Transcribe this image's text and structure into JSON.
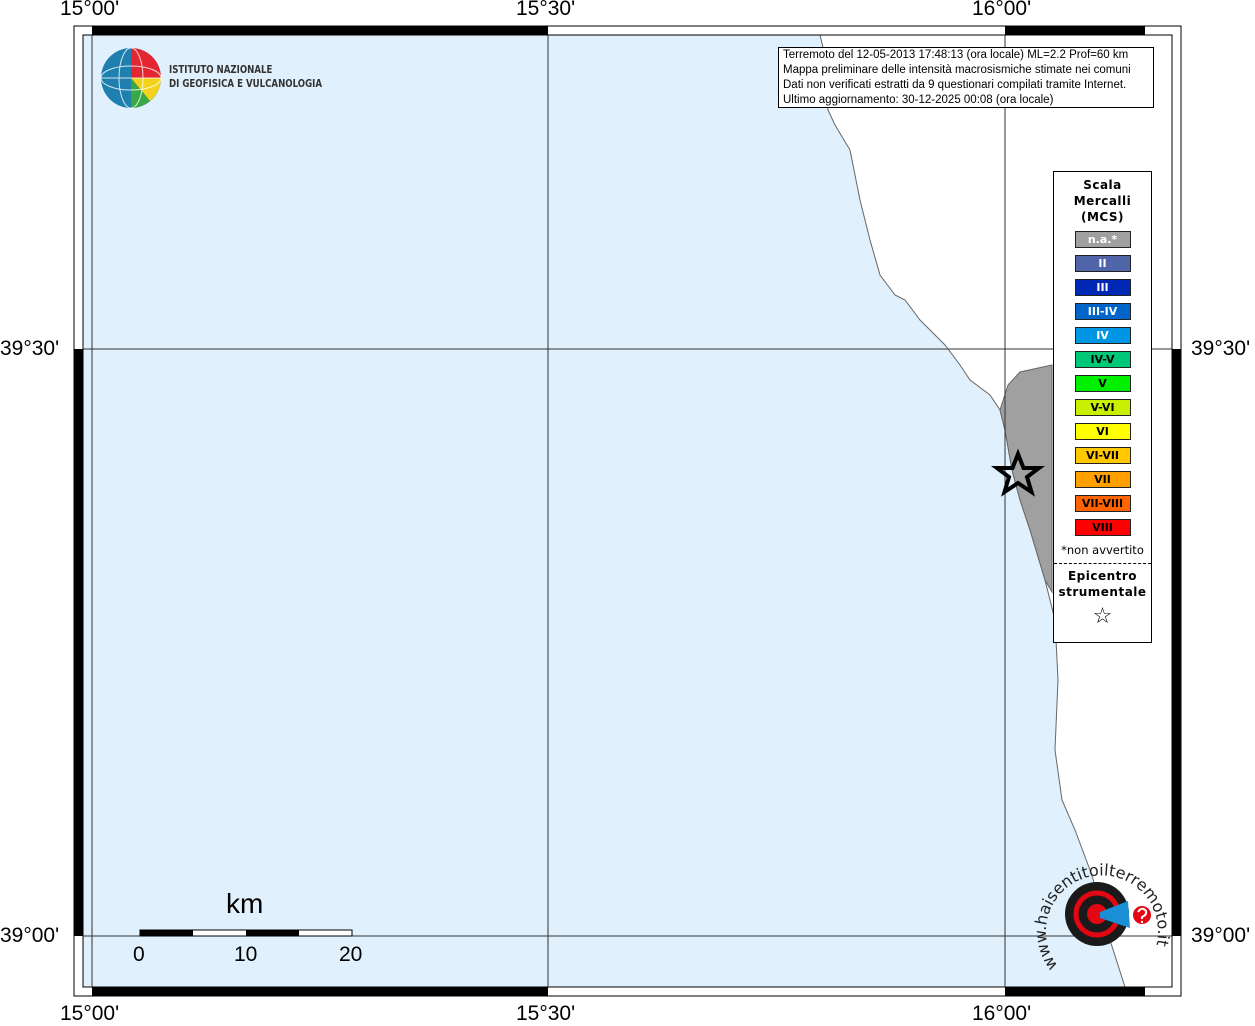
{
  "map": {
    "longitude_labels": [
      "15°00'",
      "15°30'",
      "16°00'"
    ],
    "latitude_labels": [
      "39°30'",
      "39°00'"
    ],
    "colors": {
      "sea": "#e0f0fc",
      "land": "#ffffff",
      "affected_municipality": "#a0a0a0",
      "frame": "#000000"
    },
    "epicenter_marker": "star-icon"
  },
  "info": {
    "line1": "Terremoto del 12-05-2013 17:48:13 (ora locale) ML=2.2 Prof=60 km",
    "line2": "Mappa preliminare delle intensità macrosismiche stimate nei comuni",
    "line3": "Dati non verificati estratti da 9 questionari compilati tramite Internet.",
    "line4": "Ultimo aggiornamento: 30-12-2025 00:08 (ora locale)"
  },
  "logo": {
    "institute_line1": "ISTITUTO NAZIONALE",
    "institute_line2": "DI GEOFISICA E VULCANOLOGIA",
    "hsit_text": "www.haisentitoilterremoto.it"
  },
  "legend": {
    "title1": "Scala",
    "title2": "Mercalli",
    "title3": "(MCS)",
    "items": [
      {
        "label": "n.a.*",
        "color": "#a0a0a0",
        "text_color": "#ffffff"
      },
      {
        "label": "II",
        "color": "#5064a8",
        "text_color": "#ffffff"
      },
      {
        "label": "III",
        "color": "#0028b4",
        "text_color": "#ffffff"
      },
      {
        "label": "III-IV",
        "color": "#0064c8",
        "text_color": "#ffffff"
      },
      {
        "label": "IV",
        "color": "#0096e6",
        "text_color": "#ffffff"
      },
      {
        "label": "IV-V",
        "color": "#00c878",
        "text_color": "#000000"
      },
      {
        "label": "V",
        "color": "#00f000",
        "text_color": "#000000"
      },
      {
        "label": "V-VI",
        "color": "#c8f000",
        "text_color": "#000000"
      },
      {
        "label": "VI",
        "color": "#ffff00",
        "text_color": "#000000"
      },
      {
        "label": "VI-VII",
        "color": "#ffc800",
        "text_color": "#000000"
      },
      {
        "label": "VII",
        "color": "#ffa000",
        "text_color": "#000000"
      },
      {
        "label": "VII-VIII",
        "color": "#ff6400",
        "text_color": "#000000"
      },
      {
        "label": "VIII",
        "color": "#ff0000",
        "text_color": "#000000"
      }
    ],
    "note": "*non avvertito",
    "epicenter_line1": "Epicentro",
    "epicenter_line2": "strumentale",
    "epicenter_symbol": "☆"
  },
  "scale_bar": {
    "unit": "km",
    "ticks": [
      "0",
      "10",
      "20"
    ]
  }
}
